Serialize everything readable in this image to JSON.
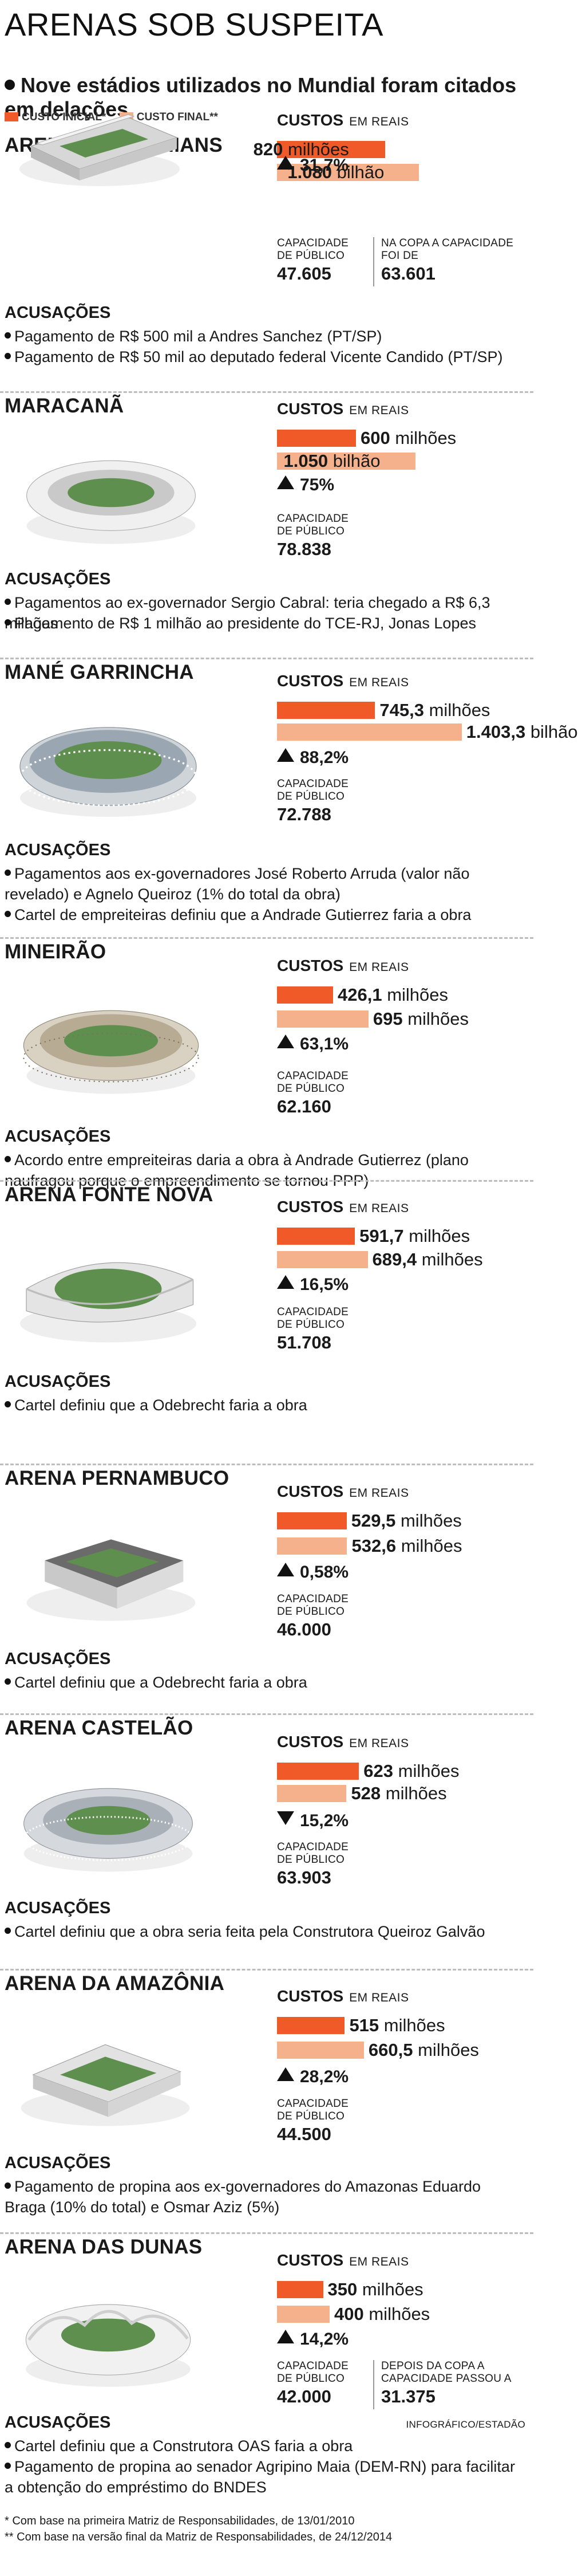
{
  "page_title": "ARENAS SOB SUSPEITA",
  "subtitle": "Nove estádios utilizados no Mundial foram citados em delações",
  "legend": [
    {
      "label": "CUSTO INICIAL*",
      "color": "#ef5a28"
    },
    {
      "label": "CUSTO FINAL**",
      "color": "#f5b08c"
    }
  ],
  "labels": {
    "custos": "CUSTOS",
    "unit": "EM REAIS",
    "capacidade": "CAPACIDADE DE PÚBLICO",
    "acusacoes": "ACUSAÇÕES"
  },
  "chart_data": {
    "type": "bar",
    "unit": "R$ milhões",
    "series": [
      {
        "name": "CUSTO INICIAL*",
        "color": "#ef5a28"
      },
      {
        "name": "CUSTO FINAL**",
        "color": "#f5b08c"
      }
    ],
    "stadiums": [
      {
        "name": "ARENA CORINTHIANS",
        "initial": 820,
        "final": 1080,
        "initial_label": "820",
        "initial_unit": "milhões",
        "final_label": "1.080",
        "final_unit": "bilhão",
        "variation": "31,7%",
        "direction": "up",
        "capacity": "47.605",
        "capacity2_label": "NA COPA A CAPACIDADE FOI DE",
        "capacity2": "63.601",
        "accusations": [
          "Pagamento de R$ 500 mil a Andres Sanchez (PT/SP)",
          "Pagamento de R$ 50 mil ao deputado federal Vicente Candido (PT/SP)"
        ]
      },
      {
        "name": "MARACANÃ",
        "initial": 600,
        "final": 1050,
        "initial_label": "600",
        "initial_unit": "milhões",
        "final_label": "1.050",
        "final_unit": "bilhão",
        "variation": "75%",
        "direction": "up",
        "capacity": "78.838",
        "accusations": [
          "Pagamentos ao ex-governador Sergio Cabral: teria chegado a R$ 6,3 milhões",
          "Pagamento de R$ 1 milhão ao presidente do TCE-RJ, Jonas Lopes"
        ]
      },
      {
        "name": "MANÉ GARRINCHA",
        "initial": 745.3,
        "final": 1403.3,
        "initial_label": "745,3",
        "initial_unit": "milhões",
        "final_label": "1.403,3",
        "final_unit": "bilhão",
        "variation": "88,2%",
        "direction": "up",
        "capacity": "72.788",
        "accusations": [
          "Pagamentos aos ex-governadores José Roberto Arruda (valor não revelado) e Agnelo Queiroz (1% do total da obra)",
          "Cartel de empreiteiras definiu que a Andrade Gutierrez faria a obra"
        ]
      },
      {
        "name": "MINEIRÃO",
        "initial": 426.1,
        "final": 695,
        "initial_label": "426,1",
        "initial_unit": "milhões",
        "final_label": "695",
        "final_unit": "milhões",
        "variation": "63,1%",
        "direction": "up",
        "capacity": "62.160",
        "accusations": [
          "Acordo entre empreiteiras daria a obra à Andrade Gutierrez (plano naufragou porque o empreendimento se tornou PPP)"
        ]
      },
      {
        "name": "ARENA FONTE NOVA",
        "initial": 591.7,
        "final": 689.4,
        "initial_label": "591,7",
        "initial_unit": "milhões",
        "final_label": "689,4",
        "final_unit": "milhões",
        "variation": "16,5%",
        "direction": "up",
        "capacity": "51.708",
        "accusations": [
          "Cartel definiu que a Odebrecht faria a obra"
        ]
      },
      {
        "name": "ARENA PERNAMBUCO",
        "initial": 529.5,
        "final": 532.6,
        "initial_label": "529,5",
        "initial_unit": "milhões",
        "final_label": "532,6",
        "final_unit": "milhões",
        "variation": "0,58%",
        "direction": "up",
        "capacity": "46.000",
        "accusations": [
          "Cartel definiu que a Odebrecht faria a obra"
        ]
      },
      {
        "name": "ARENA CASTELÃO",
        "initial": 623,
        "final": 528,
        "initial_label": "623",
        "initial_unit": "milhões",
        "final_label": "528",
        "final_unit": "milhões",
        "variation": "15,2%",
        "direction": "down",
        "capacity": "63.903",
        "accusations": [
          "Cartel definiu que a obra seria feita pela Construtora Queiroz Galvão"
        ]
      },
      {
        "name": "ARENA DA AMAZÔNIA",
        "initial": 515,
        "final": 660.5,
        "initial_label": "515",
        "initial_unit": "milhões",
        "final_label": "660,5",
        "final_unit": "milhões",
        "variation": "28,2%",
        "direction": "up",
        "capacity": "44.500",
        "accusations": [
          "Pagamento de propina aos ex-governadores do Amazonas Eduardo Braga (10% do total) e Osmar Aziz (5%)"
        ]
      },
      {
        "name": "ARENA DAS DUNAS",
        "initial": 350,
        "final": 400,
        "initial_label": "350",
        "initial_unit": "milhões",
        "final_label": "400",
        "final_unit": "milhões",
        "variation": "14,2%",
        "direction": "up",
        "capacity": "42.000",
        "capacity2_label": "DEPOIS DA COPA A CAPACIDADE PASSOU A",
        "capacity2": "31.375",
        "accusations": [
          "Cartel definiu que a Construtora OAS faria a obra",
          "Pagamento de propina ao senador Agripino Maia (DEM-RN) para facilitar a obtenção do empréstimo do BNDES"
        ]
      }
    ]
  },
  "credit": "INFOGRÁFICO/ESTADÃO",
  "footnotes": [
    "* Com base na primeira Matriz de Responsabilidades, de 13/01/2010",
    "** Com base na versão final da Matriz de Responsabilidades, de 24/12/2014"
  ]
}
